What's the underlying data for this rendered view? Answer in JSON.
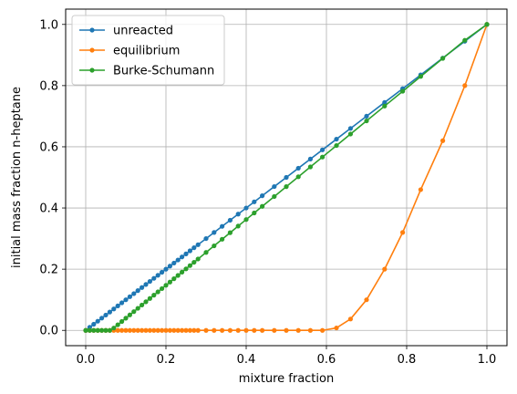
{
  "chart_data": {
    "type": "line",
    "xlabel": "mixture fraction",
    "ylabel": "initial mass fraction n-heptane",
    "xlim": [
      -0.05,
      1.05
    ],
    "ylim": [
      -0.05,
      1.05
    ],
    "xticks": [
      0.0,
      0.2,
      0.4,
      0.6,
      0.8,
      1.0
    ],
    "yticks": [
      0.0,
      0.2,
      0.4,
      0.6,
      0.8,
      1.0
    ],
    "xtick_labels": [
      "0.0",
      "0.2",
      "0.4",
      "0.6",
      "0.8",
      "1.0"
    ],
    "ytick_labels": [
      "0.0",
      "0.2",
      "0.4",
      "0.6",
      "0.8",
      "1.0"
    ],
    "grid": true,
    "legend_position": "upper-left",
    "series": [
      {
        "name": "unreacted",
        "color": "#1f77b4",
        "x": [
          0.0,
          0.01,
          0.02,
          0.03,
          0.04,
          0.05,
          0.06,
          0.07,
          0.08,
          0.09,
          0.1,
          0.11,
          0.12,
          0.13,
          0.14,
          0.15,
          0.16,
          0.17,
          0.18,
          0.19,
          0.2,
          0.21,
          0.22,
          0.23,
          0.24,
          0.25,
          0.26,
          0.27,
          0.28,
          0.3,
          0.32,
          0.34,
          0.36,
          0.38,
          0.4,
          0.42,
          0.44,
          0.47,
          0.5,
          0.53,
          0.56,
          0.59,
          0.625,
          0.66,
          0.7,
          0.745,
          0.79,
          0.835,
          0.89,
          0.945,
          1.0
        ],
        "y": [
          0.0,
          0.01,
          0.02,
          0.03,
          0.04,
          0.05,
          0.06,
          0.07,
          0.08,
          0.09,
          0.1,
          0.11,
          0.12,
          0.13,
          0.14,
          0.15,
          0.16,
          0.17,
          0.18,
          0.19,
          0.2,
          0.21,
          0.22,
          0.23,
          0.24,
          0.25,
          0.26,
          0.27,
          0.28,
          0.3,
          0.32,
          0.34,
          0.36,
          0.38,
          0.4,
          0.42,
          0.44,
          0.47,
          0.5,
          0.53,
          0.56,
          0.59,
          0.625,
          0.66,
          0.7,
          0.745,
          0.79,
          0.835,
          0.89,
          0.945,
          1.0
        ]
      },
      {
        "name": "equilibrium",
        "color": "#ff7f0e",
        "x": [
          0.0,
          0.01,
          0.02,
          0.03,
          0.04,
          0.05,
          0.06,
          0.07,
          0.08,
          0.09,
          0.1,
          0.11,
          0.12,
          0.13,
          0.14,
          0.15,
          0.16,
          0.17,
          0.18,
          0.19,
          0.2,
          0.21,
          0.22,
          0.23,
          0.24,
          0.25,
          0.26,
          0.27,
          0.28,
          0.3,
          0.32,
          0.34,
          0.36,
          0.38,
          0.4,
          0.42,
          0.44,
          0.47,
          0.5,
          0.53,
          0.56,
          0.59,
          0.625,
          0.66,
          0.7,
          0.745,
          0.79,
          0.835,
          0.89,
          0.945,
          1.0
        ],
        "y": [
          0.0,
          0.0,
          0.0,
          0.0,
          0.0,
          0.0,
          0.0,
          0.0,
          0.0,
          0.0,
          0.0,
          0.0,
          0.0,
          0.0,
          0.0,
          0.0,
          0.0,
          0.0,
          0.0,
          0.0,
          0.0,
          0.0,
          0.0,
          0.0,
          0.0,
          0.0,
          0.0,
          0.0,
          0.0,
          0.0,
          0.0,
          0.0,
          0.0,
          0.0,
          0.0,
          0.0,
          0.0,
          0.0,
          0.0,
          0.0,
          0.0,
          0.0,
          0.008,
          0.037,
          0.1,
          0.2,
          0.32,
          0.46,
          0.62,
          0.8,
          1.0
        ]
      },
      {
        "name": "Burke-Schumann",
        "color": "#2ca02c",
        "x": [
          0.0,
          0.01,
          0.02,
          0.03,
          0.04,
          0.05,
          0.06,
          0.07,
          0.08,
          0.09,
          0.1,
          0.11,
          0.12,
          0.13,
          0.14,
          0.15,
          0.16,
          0.17,
          0.18,
          0.19,
          0.2,
          0.21,
          0.22,
          0.23,
          0.24,
          0.25,
          0.26,
          0.27,
          0.28,
          0.3,
          0.32,
          0.34,
          0.36,
          0.38,
          0.4,
          0.42,
          0.44,
          0.47,
          0.5,
          0.53,
          0.56,
          0.59,
          0.625,
          0.66,
          0.7,
          0.745,
          0.79,
          0.835,
          0.89,
          0.945,
          1.0
        ],
        "y": [
          0.0,
          0.0,
          0.0,
          0.0,
          0.0,
          0.0,
          0.0,
          0.0075,
          0.0183,
          0.029,
          0.0398,
          0.0505,
          0.0613,
          0.072,
          0.0828,
          0.0935,
          0.1043,
          0.115,
          0.1258,
          0.1365,
          0.1473,
          0.158,
          0.1688,
          0.1795,
          0.1903,
          0.201,
          0.2118,
          0.2225,
          0.2333,
          0.2548,
          0.2763,
          0.2978,
          0.3193,
          0.3408,
          0.3623,
          0.3838,
          0.4053,
          0.4375,
          0.4698,
          0.502,
          0.5343,
          0.5665,
          0.6041,
          0.6417,
          0.6847,
          0.7331,
          0.7815,
          0.8299,
          0.889,
          0.9481,
          1.0
        ]
      }
    ]
  }
}
